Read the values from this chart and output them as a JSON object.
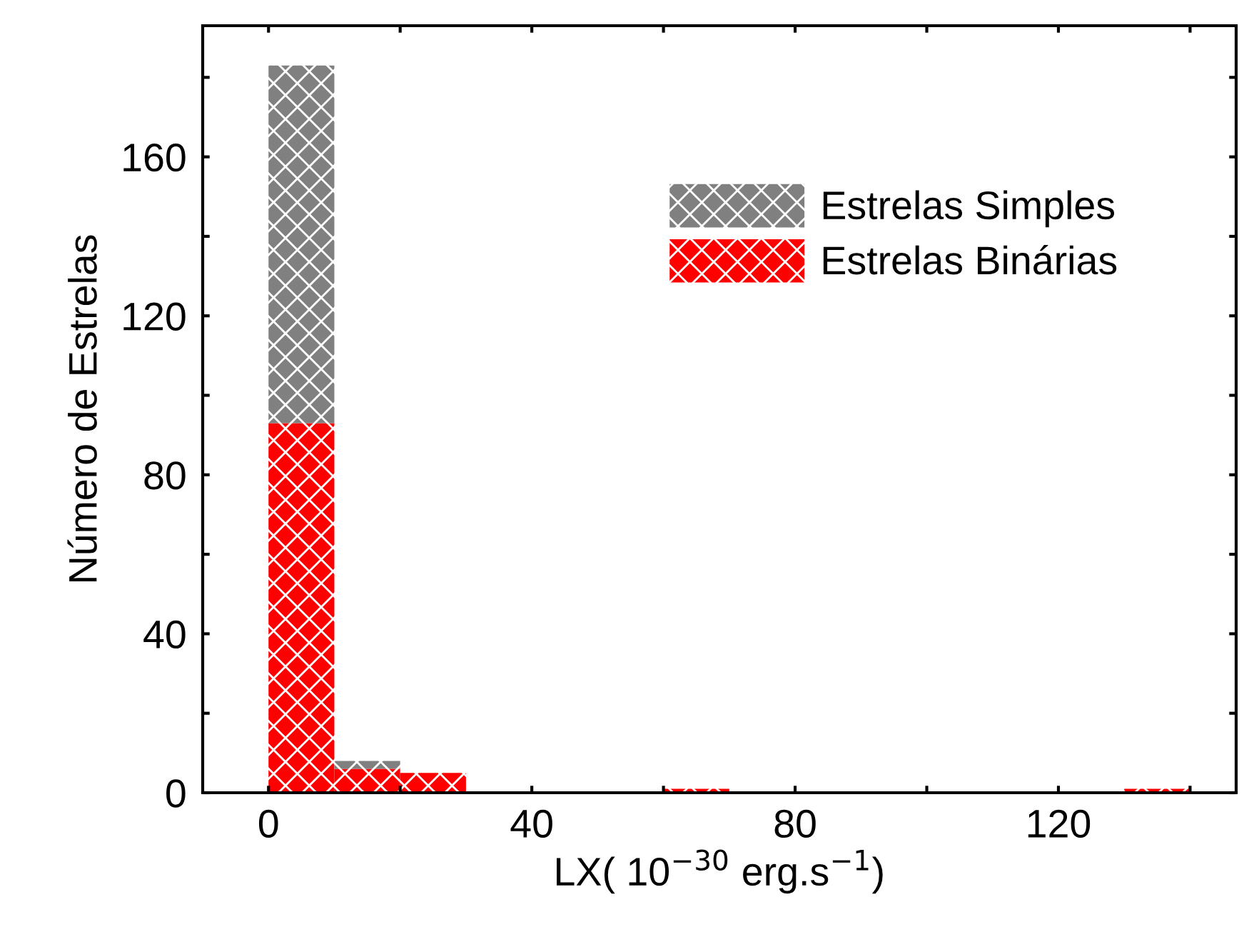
{
  "chart_data": {
    "type": "bar",
    "xlabel": "LX( 10$^{−30}$ erg.s$^{−1}$)",
    "ylabel": "Número de Estrelas",
    "x": [
      5,
      15,
      25,
      35,
      45,
      55,
      65,
      75,
      85,
      95,
      105,
      115,
      125,
      135,
      145
    ],
    "stacked": true,
    "series": [
      {
        "name": "Estrelas Binárias",
        "color": "#ff0000",
        "values": [
          93,
          6,
          5,
          0,
          0,
          0,
          1,
          0,
          0,
          0,
          0,
          0,
          0,
          1,
          0
        ]
      },
      {
        "name": "Estrelas Simples",
        "color": "#808080",
        "values": [
          90,
          2,
          0,
          0,
          0,
          0,
          0,
          0,
          0,
          0,
          0,
          0,
          0,
          0,
          0
        ]
      }
    ],
    "xlim": [
      -10,
      147
    ],
    "ylim": [
      0,
      193
    ],
    "xticks": [
      0,
      {
        "value": 20,
        "label": null
      },
      40,
      {
        "value": 60,
        "label": null
      },
      80,
      {
        "value": 100,
        "label": null
      },
      120,
      {
        "value": 140,
        "label": null
      }
    ],
    "yticks": [
      0,
      {
        "value": 20,
        "label": null
      },
      40,
      {
        "value": 60,
        "label": null
      },
      80,
      {
        "value": 100,
        "label": null
      },
      120,
      {
        "value": 140,
        "label": null
      },
      160,
      {
        "value": 180,
        "label": null
      }
    ],
    "grid": false,
    "legend": "top right"
  }
}
